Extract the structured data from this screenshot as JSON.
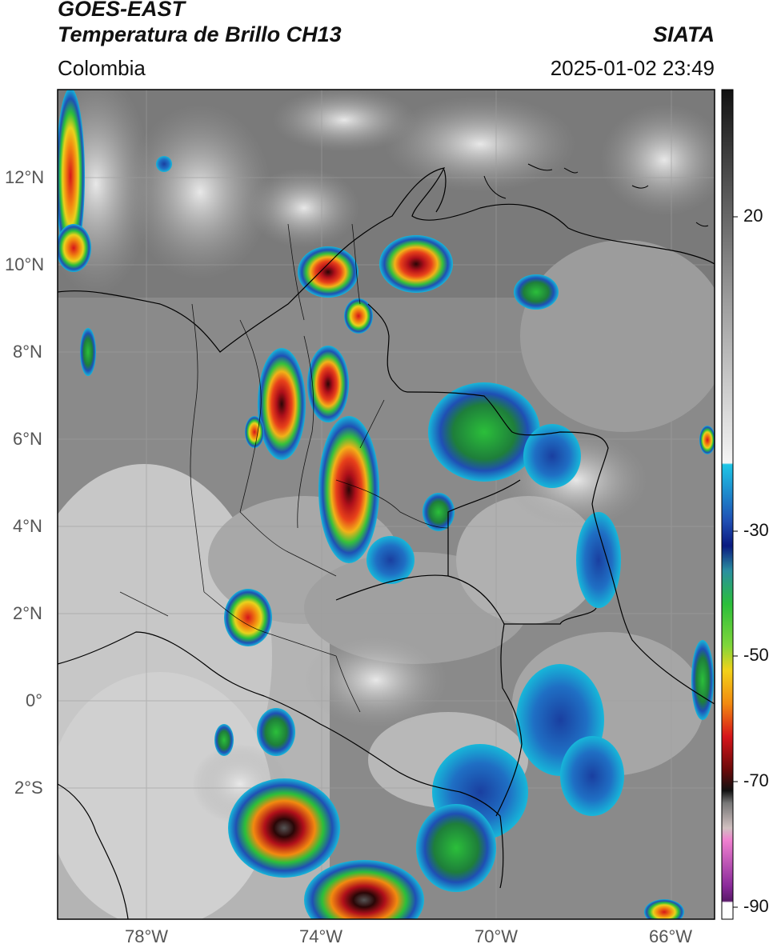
{
  "header": {
    "satellite": "GOES-EAST",
    "product": "Temperatura de Brillo CH13",
    "region": "Colombia",
    "agency": "SIATA",
    "datetime": "2025-01-02 23:49"
  },
  "map": {
    "lat_labels": [
      "12°N",
      "10°N",
      "8°N",
      "6°N",
      "4°N",
      "2°N",
      "0°",
      "2°S"
    ],
    "lon_labels": [
      "78°W",
      "74°W",
      "70°W",
      "66°W"
    ],
    "colors": {
      "cloud_gray": "#8c8c8c",
      "cold_cyan": "#17b7d9",
      "blue": "#1f4fb4",
      "green": "#2bbf3a",
      "yellow": "#f2d21a",
      "orange": "#f28a10",
      "red": "#d6141a",
      "dark": "#3a0a0a",
      "magenta": "#c040c0",
      "border": "#000000"
    }
  },
  "colorbar": {
    "ticks": [
      "20",
      "-30",
      "-50",
      "-70",
      "-90"
    ]
  }
}
